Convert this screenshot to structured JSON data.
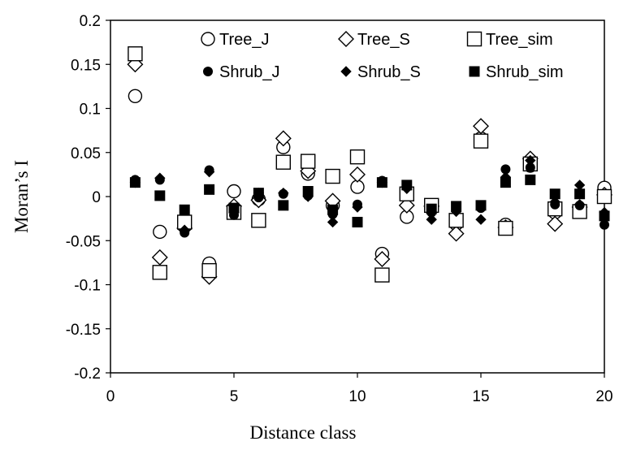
{
  "chart_data": {
    "type": "scatter",
    "xlabel": "Distance class",
    "ylabel": "Moran’s I",
    "xlim": [
      0,
      20
    ],
    "ylim": [
      -0.2,
      0.2
    ],
    "x_ticks": [
      0,
      5,
      10,
      15,
      20
    ],
    "y_ticks": [
      0.2,
      0.15,
      0.1,
      0.05,
      0,
      -0.05,
      -0.1,
      -0.15,
      -0.2
    ],
    "y_tick_labels": [
      "0.2",
      "0.15",
      "0.1",
      "0.05",
      "0",
      "-0.05",
      "-0.1",
      "-0.15",
      "-0.2"
    ],
    "grid": false,
    "legend_placement": "top-right",
    "x": [
      1,
      2,
      3,
      4,
      5,
      6,
      7,
      8,
      9,
      10,
      11,
      12,
      13,
      14,
      15,
      16,
      17,
      18,
      19,
      20
    ],
    "series": [
      {
        "name": "Tree_J",
        "marker": "circle-open",
        "values": [
          0.114,
          -0.04,
          -0.031,
          -0.076,
          0.006,
          -0.003,
          0.056,
          0.026,
          -0.01,
          0.011,
          -0.065,
          -0.023,
          -0.012,
          -0.031,
          0.066,
          -0.032,
          0.035,
          -0.018,
          -0.014,
          0.01
        ]
      },
      {
        "name": "Tree_S",
        "marker": "diamond-open",
        "values": [
          0.15,
          -0.069,
          -0.036,
          -0.091,
          -0.011,
          -0.004,
          0.066,
          0.029,
          -0.005,
          0.025,
          -0.071,
          -0.01,
          -0.011,
          -0.042,
          0.08,
          -0.035,
          0.043,
          -0.031,
          -0.012,
          0.002
        ]
      },
      {
        "name": "Tree_sim",
        "marker": "square-open",
        "values": [
          0.162,
          -0.086,
          -0.029,
          -0.084,
          -0.018,
          -0.027,
          0.039,
          0.04,
          0.023,
          0.045,
          -0.089,
          0.003,
          -0.01,
          -0.027,
          0.063,
          -0.036,
          0.037,
          -0.014,
          -0.017,
          0.0
        ]
      },
      {
        "name": "Shrub_J",
        "marker": "circle-filled",
        "values": [
          0.019,
          0.019,
          -0.041,
          0.03,
          -0.021,
          -0.001,
          0.003,
          0.001,
          -0.02,
          -0.009,
          0.018,
          0.011,
          -0.018,
          -0.011,
          -0.013,
          0.031,
          0.033,
          -0.009,
          -0.01,
          -0.032
        ]
      },
      {
        "name": "Shrub_S",
        "marker": "diamond-filled",
        "values": [
          0.016,
          0.021,
          -0.038,
          0.028,
          -0.018,
          0.004,
          0.004,
          0.0,
          -0.029,
          -0.012,
          0.016,
          0.009,
          -0.026,
          -0.017,
          -0.026,
          0.022,
          0.041,
          -0.006,
          0.013,
          -0.018
        ]
      },
      {
        "name": "Shrub_sim",
        "marker": "square-filled",
        "values": [
          0.016,
          0.001,
          -0.015,
          0.008,
          -0.013,
          0.004,
          -0.01,
          0.006,
          -0.015,
          -0.029,
          0.016,
          0.013,
          -0.014,
          -0.011,
          -0.01,
          0.016,
          0.019,
          0.003,
          0.003,
          -0.022
        ]
      }
    ]
  }
}
